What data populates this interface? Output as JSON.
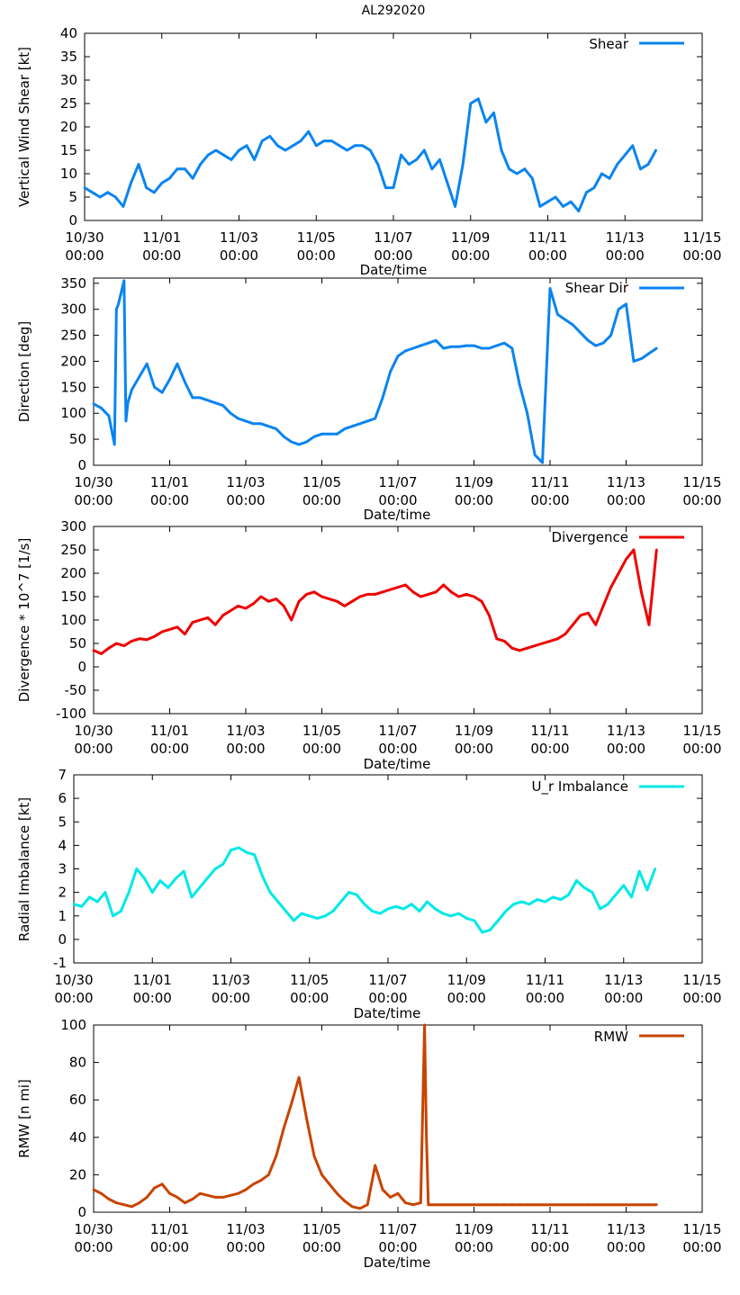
{
  "title": "AL292020",
  "xlabel": "Date/time",
  "date_ticks": [
    [
      "10/30",
      "00:00"
    ],
    [
      "11/01",
      "00:00"
    ],
    [
      "11/03",
      "00:00"
    ],
    [
      "11/05",
      "00:00"
    ],
    [
      "11/07",
      "00:00"
    ],
    [
      "11/09",
      "00:00"
    ],
    [
      "11/11",
      "00:00"
    ],
    [
      "11/13",
      "00:00"
    ],
    [
      "11/15",
      "00:00"
    ]
  ],
  "chart_data": [
    {
      "type": "line",
      "ylabel": "Vertical Wind Shear [kt]",
      "xlim": [
        0,
        16
      ],
      "ylim": [
        0,
        40
      ],
      "yticks": [
        0,
        5,
        10,
        15,
        20,
        25,
        30,
        35,
        40
      ],
      "series": [
        {
          "name": "Shear",
          "color": "#0a84f0",
          "x": [
            0.0,
            0.2,
            0.4,
            0.6,
            0.8,
            1.0,
            1.2,
            1.4,
            1.6,
            1.8,
            2.0,
            2.2,
            2.4,
            2.6,
            2.8,
            3.0,
            3.2,
            3.4,
            3.6,
            3.8,
            4.0,
            4.2,
            4.4,
            4.6,
            4.8,
            5.0,
            5.2,
            5.4,
            5.6,
            5.8,
            6.0,
            6.2,
            6.4,
            6.6,
            6.8,
            7.0,
            7.2,
            7.4,
            7.6,
            7.8,
            8.0,
            8.2,
            8.4,
            8.6,
            8.8,
            9.0,
            9.2,
            9.4,
            9.6,
            9.8,
            10.0,
            10.2,
            10.4,
            10.6,
            10.8,
            11.0,
            11.2,
            11.4,
            11.6,
            11.8,
            12.0,
            12.2,
            12.4,
            12.6,
            12.8,
            13.0,
            13.2,
            13.4,
            13.6,
            13.8,
            14.0,
            14.2,
            14.4,
            14.6,
            14.8
          ],
          "values": [
            7,
            6,
            5,
            6,
            5,
            3,
            8,
            12,
            7,
            6,
            8,
            9,
            11,
            11,
            9,
            12,
            14,
            15,
            14,
            13,
            15,
            16,
            13,
            17,
            18,
            16,
            15,
            16,
            17,
            19,
            16,
            17,
            17,
            16,
            15,
            16,
            16,
            15,
            12,
            7,
            7,
            14,
            12,
            13,
            15,
            11,
            13,
            8,
            3,
            12,
            25,
            26,
            21,
            23,
            15,
            11,
            10,
            11,
            9,
            3,
            4,
            5,
            3,
            4,
            2,
            6,
            7,
            10,
            9,
            12,
            14,
            16,
            11,
            12,
            15
          ],
          "data_labels": []
        }
      ]
    },
    {
      "type": "line",
      "ylabel": "Direction [deg]",
      "xlim": [
        0,
        16
      ],
      "ylim": [
        0,
        360
      ],
      "yticks": [
        0,
        50,
        100,
        150,
        200,
        250,
        300,
        350
      ],
      "series": [
        {
          "name": "Shear Dir",
          "color": "#0a84f0",
          "x": [
            0.0,
            0.2,
            0.4,
            0.55,
            0.6,
            0.65,
            0.8,
            0.85,
            0.9,
            1.0,
            1.2,
            1.4,
            1.6,
            1.8,
            2.0,
            2.2,
            2.4,
            2.6,
            2.8,
            3.0,
            3.2,
            3.4,
            3.6,
            3.8,
            4.0,
            4.2,
            4.4,
            4.6,
            4.8,
            5.0,
            5.2,
            5.4,
            5.6,
            5.8,
            6.0,
            6.2,
            6.4,
            6.6,
            6.8,
            7.0,
            7.2,
            7.4,
            7.6,
            7.8,
            8.0,
            8.2,
            8.4,
            8.6,
            8.8,
            9.0,
            9.2,
            9.4,
            9.6,
            9.8,
            10.0,
            10.2,
            10.4,
            10.6,
            10.8,
            11.0,
            11.2,
            11.4,
            11.6,
            11.8,
            12.0,
            12.2,
            12.4,
            12.6,
            12.8,
            13.0,
            13.2,
            13.4,
            13.6,
            13.8,
            14.0,
            14.2,
            14.4,
            14.6,
            14.8
          ],
          "values": [
            118,
            110,
            95,
            40,
            300,
            310,
            355,
            85,
            120,
            145,
            170,
            195,
            150,
            140,
            165,
            195,
            160,
            130,
            130,
            125,
            120,
            115,
            100,
            90,
            85,
            80,
            80,
            75,
            70,
            55,
            45,
            40,
            45,
            55,
            60,
            60,
            60,
            70,
            75,
            80,
            85,
            90,
            130,
            180,
            210,
            220,
            225,
            230,
            235,
            240,
            225,
            228,
            228,
            230,
            230,
            225,
            225,
            230,
            235,
            225,
            155,
            100,
            20,
            5,
            340,
            290,
            280,
            270,
            255,
            240,
            230,
            235,
            250,
            300,
            310,
            200,
            205,
            215,
            225
          ],
          "data_labels": []
        }
      ]
    },
    {
      "type": "line",
      "ylabel": "Divergence * 10^7 [1/s]",
      "xlim": [
        0,
        16
      ],
      "ylim": [
        -100,
        300
      ],
      "yticks": [
        -100,
        -50,
        0,
        50,
        100,
        150,
        200,
        250,
        300
      ],
      "series": [
        {
          "name": "Divergence",
          "color": "#ef0000",
          "x": [
            0.0,
            0.2,
            0.4,
            0.6,
            0.8,
            1.0,
            1.2,
            1.4,
            1.6,
            1.8,
            2.0,
            2.2,
            2.4,
            2.6,
            2.8,
            3.0,
            3.2,
            3.4,
            3.6,
            3.8,
            4.0,
            4.2,
            4.4,
            4.6,
            4.8,
            5.0,
            5.2,
            5.4,
            5.6,
            5.8,
            6.0,
            6.2,
            6.4,
            6.6,
            6.8,
            7.0,
            7.2,
            7.4,
            7.6,
            7.8,
            8.0,
            8.2,
            8.4,
            8.6,
            8.8,
            9.0,
            9.2,
            9.4,
            9.6,
            9.8,
            10.0,
            10.2,
            10.4,
            10.6,
            10.8,
            11.0,
            11.2,
            11.4,
            11.6,
            11.8,
            12.0,
            12.2,
            12.4,
            12.6,
            12.8,
            13.0,
            13.2,
            13.4,
            13.6,
            13.8,
            14.0,
            14.2,
            14.4,
            14.6,
            14.8
          ],
          "values": [
            35,
            28,
            40,
            50,
            45,
            55,
            60,
            58,
            65,
            75,
            80,
            85,
            70,
            95,
            100,
            105,
            90,
            110,
            120,
            130,
            125,
            135,
            150,
            140,
            145,
            130,
            100,
            140,
            155,
            160,
            150,
            145,
            140,
            130,
            140,
            150,
            155,
            155,
            160,
            165,
            170,
            175,
            160,
            150,
            155,
            160,
            175,
            160,
            150,
            155,
            150,
            140,
            110,
            60,
            55,
            40,
            35,
            40,
            45,
            50,
            55,
            60,
            70,
            90,
            110,
            115,
            90,
            130,
            170,
            200,
            230,
            250,
            160,
            90,
            250
          ],
          "data_labels": []
        }
      ]
    },
    {
      "type": "line",
      "ylabel": "Radial Imbalance [kt]",
      "xlim": [
        0,
        16
      ],
      "ylim": [
        -1,
        7
      ],
      "yticks": [
        -1,
        0,
        1,
        2,
        3,
        4,
        5,
        6,
        7
      ],
      "series": [
        {
          "name": "U_r Imbalance",
          "color": "#00e8e8",
          "x": [
            0.0,
            0.2,
            0.4,
            0.6,
            0.8,
            1.0,
            1.2,
            1.4,
            1.6,
            1.8,
            2.0,
            2.2,
            2.4,
            2.6,
            2.8,
            3.0,
            3.2,
            3.4,
            3.6,
            3.8,
            4.0,
            4.2,
            4.4,
            4.6,
            4.8,
            5.0,
            5.2,
            5.4,
            5.6,
            5.8,
            6.0,
            6.2,
            6.4,
            6.6,
            6.8,
            7.0,
            7.2,
            7.4,
            7.6,
            7.8,
            8.0,
            8.2,
            8.4,
            8.6,
            8.8,
            9.0,
            9.2,
            9.4,
            9.6,
            9.8,
            10.0,
            10.2,
            10.4,
            10.6,
            10.8,
            11.0,
            11.2,
            11.4,
            11.6,
            11.8,
            12.0,
            12.2,
            12.4,
            12.6,
            12.8,
            13.0,
            13.2,
            13.4,
            13.6,
            13.8,
            14.0,
            14.2,
            14.4,
            14.6,
            14.8
          ],
          "values": [
            1.5,
            1.4,
            1.8,
            1.6,
            2.0,
            1.0,
            1.2,
            2.0,
            3.0,
            2.6,
            2.0,
            2.5,
            2.2,
            2.6,
            2.9,
            1.8,
            2.2,
            2.6,
            3.0,
            3.2,
            3.8,
            3.9,
            3.7,
            3.6,
            2.7,
            2.0,
            1.6,
            1.2,
            0.8,
            1.1,
            1.0,
            0.9,
            1.0,
            1.2,
            1.6,
            2.0,
            1.9,
            1.5,
            1.2,
            1.1,
            1.3,
            1.4,
            1.3,
            1.5,
            1.2,
            1.6,
            1.3,
            1.1,
            1.0,
            1.1,
            0.9,
            0.8,
            0.3,
            0.4,
            0.8,
            1.2,
            1.5,
            1.6,
            1.5,
            1.7,
            1.6,
            1.8,
            1.7,
            1.9,
            2.5,
            2.2,
            2.0,
            1.3,
            1.5,
            1.9,
            2.3,
            1.8,
            2.9,
            2.1,
            3.0
          ],
          "data_labels": []
        }
      ]
    },
    {
      "type": "line",
      "ylabel": "RMW [n mi]",
      "xlim": [
        0,
        16
      ],
      "ylim": [
        0,
        100
      ],
      "yticks": [
        0,
        20,
        40,
        60,
        80,
        100
      ],
      "series": [
        {
          "name": "RMW",
          "color": "#c84400",
          "x": [
            0.0,
            0.2,
            0.4,
            0.6,
            0.8,
            1.0,
            1.2,
            1.4,
            1.6,
            1.8,
            2.0,
            2.2,
            2.4,
            2.6,
            2.8,
            3.0,
            3.2,
            3.4,
            3.6,
            3.8,
            4.0,
            4.2,
            4.4,
            4.6,
            4.8,
            5.0,
            5.2,
            5.4,
            5.6,
            5.8,
            6.0,
            6.2,
            6.4,
            6.6,
            6.8,
            7.0,
            7.2,
            7.4,
            7.6,
            7.8,
            8.0,
            8.2,
            8.4,
            8.6,
            8.7,
            8.75,
            8.8,
            9.0,
            9.2,
            9.4,
            9.6,
            9.8,
            10.0,
            10.2,
            10.4,
            10.6,
            10.8,
            11.0,
            11.2,
            11.4,
            11.6,
            11.8,
            12.0,
            12.2,
            12.4,
            12.6,
            12.8,
            13.0,
            13.2,
            13.4,
            13.6,
            13.8,
            14.0,
            14.2,
            14.4,
            14.6,
            14.8
          ],
          "values": [
            12,
            10,
            7,
            5,
            4,
            3,
            5,
            8,
            13,
            15,
            10,
            8,
            5,
            7,
            10,
            9,
            8,
            8,
            9,
            10,
            12,
            15,
            17,
            20,
            30,
            45,
            58,
            72,
            50,
            30,
            20,
            15,
            10,
            6,
            3,
            2,
            4,
            25,
            12,
            8,
            10,
            5,
            4,
            5,
            100,
            40,
            4,
            4,
            4,
            4,
            4,
            4,
            4,
            4,
            4,
            4,
            4,
            4,
            4,
            4,
            4,
            4,
            4,
            4,
            4,
            4,
            4,
            4,
            4,
            4,
            4,
            4,
            4,
            4,
            4,
            4,
            4
          ],
          "data_labels": []
        }
      ]
    }
  ]
}
